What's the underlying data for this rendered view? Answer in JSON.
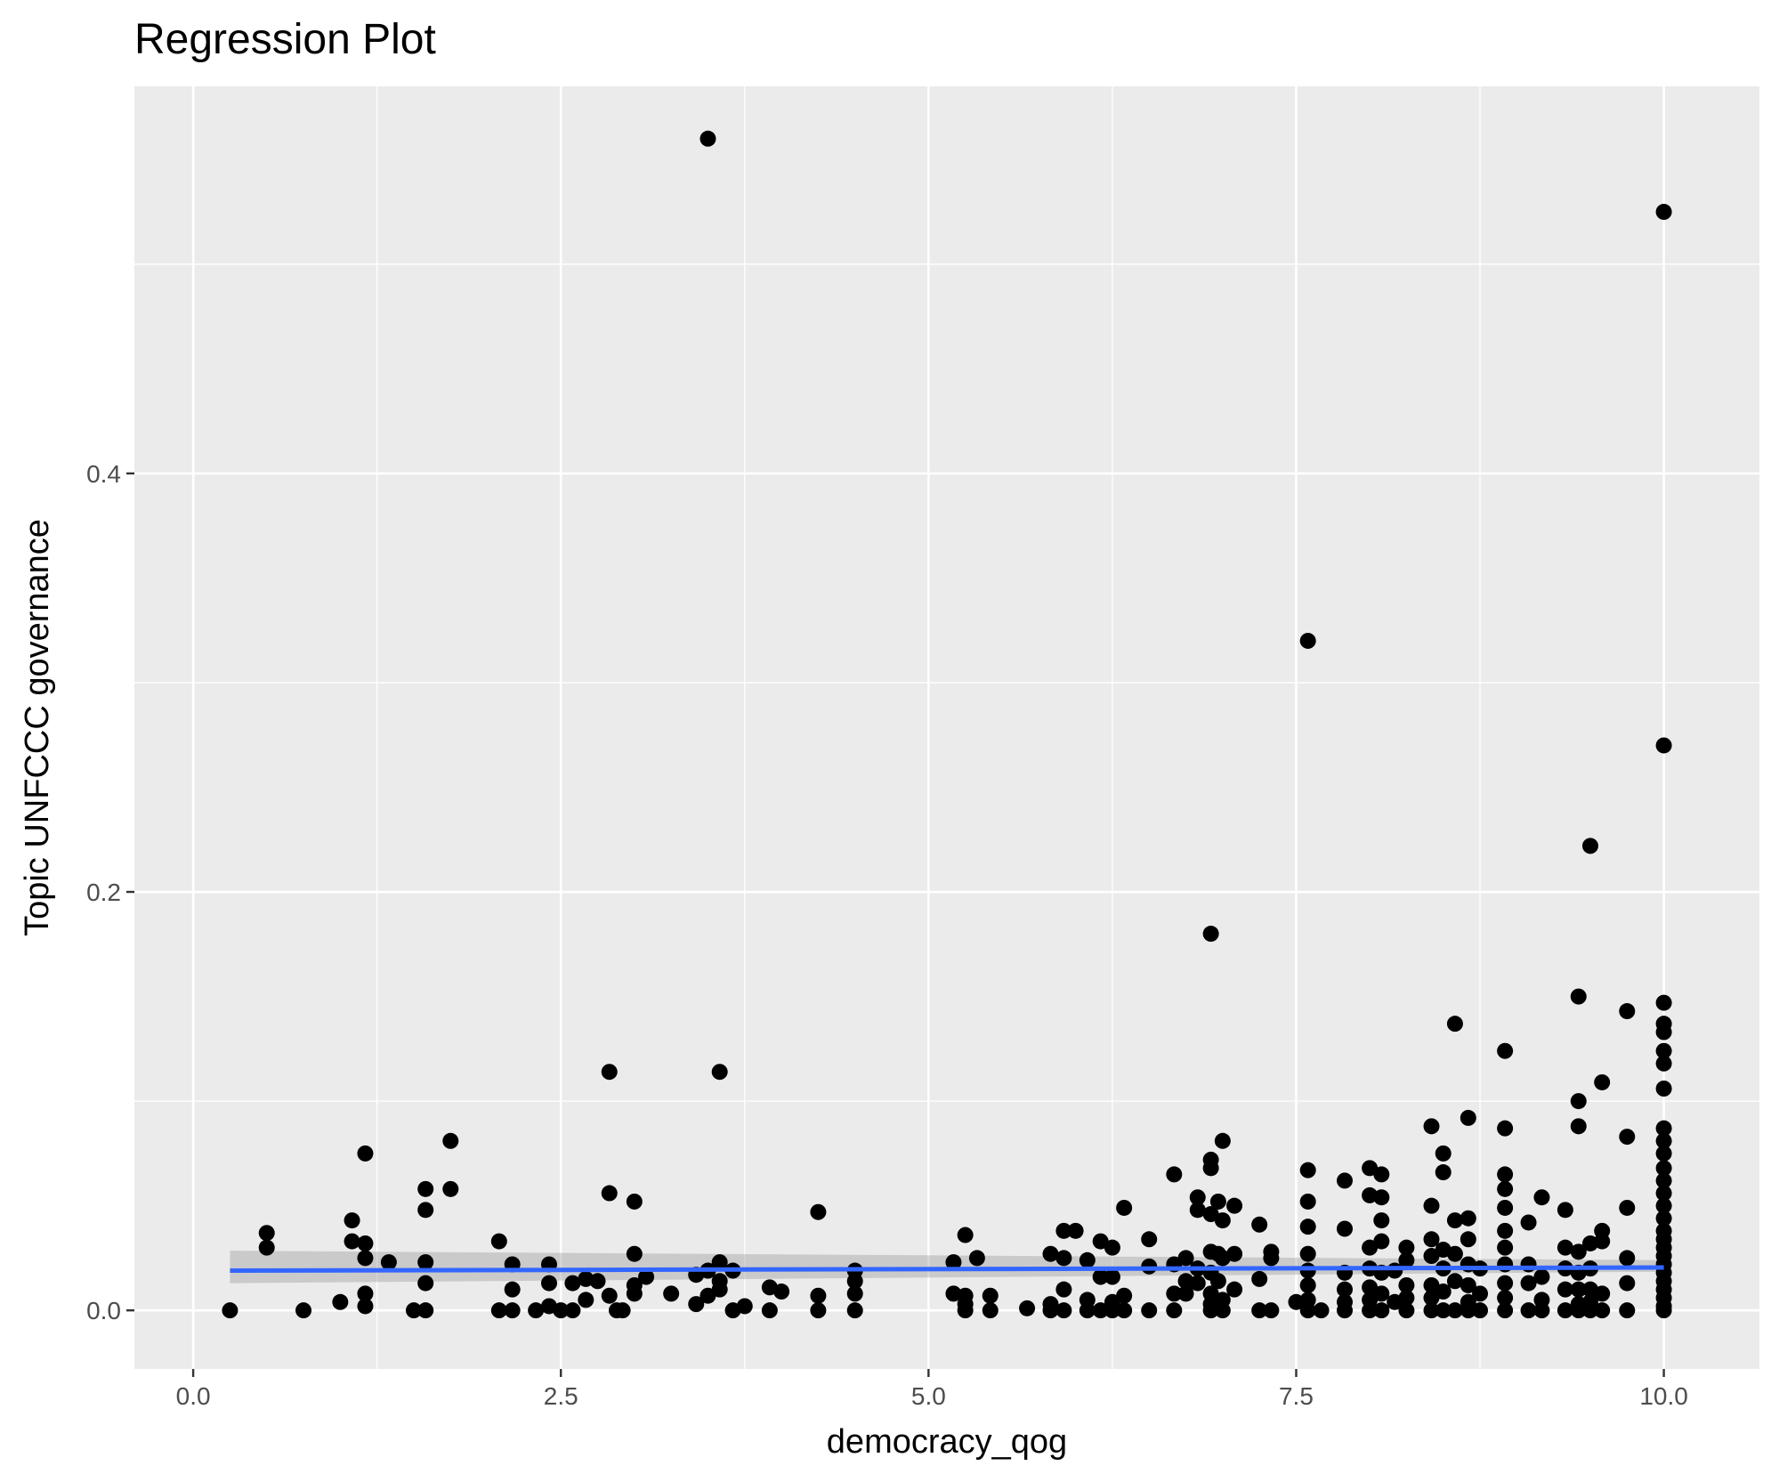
{
  "chart_data": {
    "type": "scatter",
    "title": "Regression Plot",
    "xlabel": "democracy_qog",
    "ylabel": "Topic UNFCCC governance",
    "xlim": [
      -0.4,
      10.65
    ],
    "ylim": [
      -0.028,
      0.585
    ],
    "x_ticks": [
      0.0,
      2.5,
      5.0,
      7.5,
      10.0
    ],
    "x_tick_labels": [
      "0.0",
      "2.5",
      "5.0",
      "7.5",
      "10.0"
    ],
    "y_ticks": [
      0.0,
      0.2,
      0.4
    ],
    "y_tick_labels": [
      "0.0",
      "0.2",
      "0.4"
    ],
    "grid": true,
    "colors": {
      "panel": "#ebebeb",
      "points": "#000000",
      "regression_line": "#3366ff",
      "confidence_band": "#999999"
    },
    "regression": {
      "x": [
        0.25,
        10.0
      ],
      "y": [
        0.019,
        0.0205
      ],
      "ci_lower": [
        0.013,
        0.0185
      ],
      "ci_upper": [
        0.0285,
        0.024
      ]
    },
    "points": [
      [
        0.25,
        0.0
      ],
      [
        0.5,
        0.037
      ],
      [
        0.5,
        0.03
      ],
      [
        0.75,
        0.0
      ],
      [
        1.0,
        0.004
      ],
      [
        1.08,
        0.043
      ],
      [
        1.08,
        0.033
      ],
      [
        1.17,
        0.075
      ],
      [
        1.17,
        0.032
      ],
      [
        1.17,
        0.025
      ],
      [
        1.17,
        0.008
      ],
      [
        1.17,
        0.002
      ],
      [
        1.33,
        0.023
      ],
      [
        1.5,
        0.0
      ],
      [
        1.58,
        0.058
      ],
      [
        1.58,
        0.048
      ],
      [
        1.58,
        0.023
      ],
      [
        1.58,
        0.013
      ],
      [
        1.58,
        0.0
      ],
      [
        1.75,
        0.081
      ],
      [
        1.75,
        0.058
      ],
      [
        2.08,
        0.033
      ],
      [
        2.08,
        0.0
      ],
      [
        2.17,
        0.022
      ],
      [
        2.17,
        0.01
      ],
      [
        2.17,
        0.0
      ],
      [
        2.33,
        0.0
      ],
      [
        2.42,
        0.022
      ],
      [
        2.42,
        0.013
      ],
      [
        2.42,
        0.002
      ],
      [
        2.5,
        0.0
      ],
      [
        2.58,
        0.0
      ],
      [
        2.58,
        0.013
      ],
      [
        2.67,
        0.015
      ],
      [
        2.67,
        0.005
      ],
      [
        2.75,
        0.014
      ],
      [
        2.83,
        0.114
      ],
      [
        2.83,
        0.056
      ],
      [
        2.83,
        0.007
      ],
      [
        2.92,
        0.0
      ],
      [
        2.88,
        0.0
      ],
      [
        3.0,
        0.052
      ],
      [
        3.0,
        0.027
      ],
      [
        3.0,
        0.012
      ],
      [
        3.0,
        0.008
      ],
      [
        3.08,
        0.016
      ],
      [
        3.25,
        0.008
      ],
      [
        3.42,
        0.003
      ],
      [
        3.42,
        0.017
      ],
      [
        3.5,
        0.56
      ],
      [
        3.5,
        0.007
      ],
      [
        3.5,
        0.019
      ],
      [
        3.58,
        0.114
      ],
      [
        3.58,
        0.023
      ],
      [
        3.58,
        0.014
      ],
      [
        3.58,
        0.01
      ],
      [
        3.67,
        0.019
      ],
      [
        3.67,
        0.0
      ],
      [
        3.75,
        0.002
      ],
      [
        3.92,
        0.011
      ],
      [
        3.92,
        0.0
      ],
      [
        4.0,
        0.009
      ],
      [
        4.25,
        0.047
      ],
      [
        4.25,
        0.007
      ],
      [
        4.25,
        0.0
      ],
      [
        4.5,
        0.019
      ],
      [
        4.5,
        0.014
      ],
      [
        4.5,
        0.008
      ],
      [
        4.5,
        0.0
      ],
      [
        5.17,
        0.023
      ],
      [
        5.17,
        0.008
      ],
      [
        5.25,
        0.036
      ],
      [
        5.25,
        0.007
      ],
      [
        5.25,
        0.003
      ],
      [
        5.25,
        0.0
      ],
      [
        5.33,
        0.025
      ],
      [
        5.42,
        0.007
      ],
      [
        5.42,
        0.0
      ],
      [
        5.67,
        0.001
      ],
      [
        5.83,
        0.027
      ],
      [
        5.83,
        0.003
      ],
      [
        5.83,
        0.0
      ],
      [
        5.92,
        0.038
      ],
      [
        5.92,
        0.025
      ],
      [
        5.92,
        0.01
      ],
      [
        5.92,
        0.0
      ],
      [
        6.0,
        0.038
      ],
      [
        6.08,
        0.024
      ],
      [
        6.08,
        0.005
      ],
      [
        6.08,
        0.0
      ],
      [
        6.17,
        0.033
      ],
      [
        6.17,
        0.016
      ],
      [
        6.17,
        0.0
      ],
      [
        6.25,
        0.03
      ],
      [
        6.25,
        0.016
      ],
      [
        6.25,
        0.004
      ],
      [
        6.25,
        0.0
      ],
      [
        6.33,
        0.049
      ],
      [
        6.33,
        0.007
      ],
      [
        6.33,
        0.0
      ],
      [
        6.5,
        0.034
      ],
      [
        6.5,
        0.021
      ],
      [
        6.5,
        0.0
      ],
      [
        6.67,
        0.065
      ],
      [
        6.67,
        0.022
      ],
      [
        6.67,
        0.008
      ],
      [
        6.67,
        0.0
      ],
      [
        6.75,
        0.025
      ],
      [
        6.75,
        0.014
      ],
      [
        6.75,
        0.008
      ],
      [
        6.83,
        0.054
      ],
      [
        6.83,
        0.048
      ],
      [
        6.83,
        0.02
      ],
      [
        6.83,
        0.013
      ],
      [
        6.92,
        0.18
      ],
      [
        6.92,
        0.072
      ],
      [
        6.92,
        0.068
      ],
      [
        6.92,
        0.046
      ],
      [
        6.92,
        0.028
      ],
      [
        6.92,
        0.018
      ],
      [
        6.92,
        0.008
      ],
      [
        6.92,
        0.003
      ],
      [
        6.92,
        0.0
      ],
      [
        6.97,
        0.052
      ],
      [
        6.97,
        0.027
      ],
      [
        6.97,
        0.014
      ],
      [
        7.0,
        0.081
      ],
      [
        7.0,
        0.043
      ],
      [
        7.0,
        0.025
      ],
      [
        7.0,
        0.005
      ],
      [
        7.0,
        0.0
      ],
      [
        7.08,
        0.05
      ],
      [
        7.08,
        0.027
      ],
      [
        7.08,
        0.01
      ],
      [
        7.25,
        0.041
      ],
      [
        7.25,
        0.015
      ],
      [
        7.25,
        0.0
      ],
      [
        7.33,
        0.028
      ],
      [
        7.33,
        0.025
      ],
      [
        7.33,
        0.0
      ],
      [
        7.5,
        0.004
      ],
      [
        7.58,
        0.32
      ],
      [
        7.58,
        0.067
      ],
      [
        7.58,
        0.052
      ],
      [
        7.58,
        0.04
      ],
      [
        7.58,
        0.027
      ],
      [
        7.58,
        0.019
      ],
      [
        7.58,
        0.012
      ],
      [
        7.58,
        0.005
      ],
      [
        7.58,
        0.0
      ],
      [
        7.67,
        0.0
      ],
      [
        7.83,
        0.062
      ],
      [
        7.83,
        0.039
      ],
      [
        7.83,
        0.018
      ],
      [
        7.83,
        0.01
      ],
      [
        7.83,
        0.004
      ],
      [
        7.83,
        0.0
      ],
      [
        8.0,
        0.068
      ],
      [
        8.0,
        0.055
      ],
      [
        8.0,
        0.03
      ],
      [
        8.0,
        0.02
      ],
      [
        8.0,
        0.011
      ],
      [
        8.0,
        0.005
      ],
      [
        8.0,
        0.0
      ],
      [
        8.08,
        0.065
      ],
      [
        8.08,
        0.054
      ],
      [
        8.08,
        0.043
      ],
      [
        8.08,
        0.033
      ],
      [
        8.08,
        0.018
      ],
      [
        8.08,
        0.008
      ],
      [
        8.08,
        0.0
      ],
      [
        8.17,
        0.019
      ],
      [
        8.17,
        0.004
      ],
      [
        8.25,
        0.03
      ],
      [
        8.25,
        0.024
      ],
      [
        8.25,
        0.012
      ],
      [
        8.25,
        0.006
      ],
      [
        8.25,
        0.0
      ],
      [
        8.42,
        0.088
      ],
      [
        8.42,
        0.05
      ],
      [
        8.42,
        0.034
      ],
      [
        8.42,
        0.026
      ],
      [
        8.42,
        0.012
      ],
      [
        8.42,
        0.006
      ],
      [
        8.42,
        0.0
      ],
      [
        8.5,
        0.075
      ],
      [
        8.5,
        0.066
      ],
      [
        8.5,
        0.029
      ],
      [
        8.5,
        0.02
      ],
      [
        8.5,
        0.009
      ],
      [
        8.5,
        0.0
      ],
      [
        8.58,
        0.137
      ],
      [
        8.58,
        0.043
      ],
      [
        8.58,
        0.027
      ],
      [
        8.58,
        0.014
      ],
      [
        8.58,
        0.0
      ],
      [
        8.67,
        0.092
      ],
      [
        8.67,
        0.044
      ],
      [
        8.67,
        0.034
      ],
      [
        8.67,
        0.022
      ],
      [
        8.67,
        0.012
      ],
      [
        8.67,
        0.004
      ],
      [
        8.67,
        0.0
      ],
      [
        8.75,
        0.02
      ],
      [
        8.75,
        0.008
      ],
      [
        8.75,
        0.0
      ],
      [
        8.92,
        0.124
      ],
      [
        8.92,
        0.087
      ],
      [
        8.92,
        0.065
      ],
      [
        8.92,
        0.058
      ],
      [
        8.92,
        0.049
      ],
      [
        8.92,
        0.038
      ],
      [
        8.92,
        0.03
      ],
      [
        8.92,
        0.022
      ],
      [
        8.92,
        0.013
      ],
      [
        8.92,
        0.006
      ],
      [
        8.92,
        0.0
      ],
      [
        9.08,
        0.042
      ],
      [
        9.08,
        0.022
      ],
      [
        9.08,
        0.013
      ],
      [
        9.08,
        0.0
      ],
      [
        9.17,
        0.054
      ],
      [
        9.17,
        0.016
      ],
      [
        9.17,
        0.005
      ],
      [
        9.17,
        0.0
      ],
      [
        9.33,
        0.048
      ],
      [
        9.33,
        0.03
      ],
      [
        9.33,
        0.02
      ],
      [
        9.33,
        0.01
      ],
      [
        9.33,
        0.0
      ],
      [
        9.42,
        0.15
      ],
      [
        9.42,
        0.1
      ],
      [
        9.42,
        0.088
      ],
      [
        9.42,
        0.028
      ],
      [
        9.42,
        0.018
      ],
      [
        9.42,
        0.01
      ],
      [
        9.42,
        0.003
      ],
      [
        9.42,
        0.0
      ],
      [
        9.5,
        0.222
      ],
      [
        9.5,
        0.032
      ],
      [
        9.5,
        0.02
      ],
      [
        9.5,
        0.01
      ],
      [
        9.5,
        0.004
      ],
      [
        9.5,
        0.0
      ],
      [
        9.58,
        0.109
      ],
      [
        9.58,
        0.038
      ],
      [
        9.58,
        0.033
      ],
      [
        9.58,
        0.008
      ],
      [
        9.58,
        0.0
      ],
      [
        9.75,
        0.143
      ],
      [
        9.75,
        0.083
      ],
      [
        9.75,
        0.049
      ],
      [
        9.75,
        0.025
      ],
      [
        9.75,
        0.013
      ],
      [
        9.75,
        0.0
      ],
      [
        10.0,
        0.525
      ],
      [
        10.0,
        0.27
      ],
      [
        10.0,
        0.147
      ],
      [
        10.0,
        0.137
      ],
      [
        10.0,
        0.133
      ],
      [
        10.0,
        0.124
      ],
      [
        10.0,
        0.118
      ],
      [
        10.0,
        0.106
      ],
      [
        10.0,
        0.087
      ],
      [
        10.0,
        0.081
      ],
      [
        10.0,
        0.075
      ],
      [
        10.0,
        0.068
      ],
      [
        10.0,
        0.062
      ],
      [
        10.0,
        0.056
      ],
      [
        10.0,
        0.05
      ],
      [
        10.0,
        0.044
      ],
      [
        10.0,
        0.038
      ],
      [
        10.0,
        0.034
      ],
      [
        10.0,
        0.03
      ],
      [
        10.0,
        0.026
      ],
      [
        10.0,
        0.022
      ],
      [
        10.0,
        0.018
      ],
      [
        10.0,
        0.014
      ],
      [
        10.0,
        0.01
      ],
      [
        10.0,
        0.006
      ],
      [
        10.0,
        0.002
      ],
      [
        10.0,
        0.0
      ]
    ]
  }
}
